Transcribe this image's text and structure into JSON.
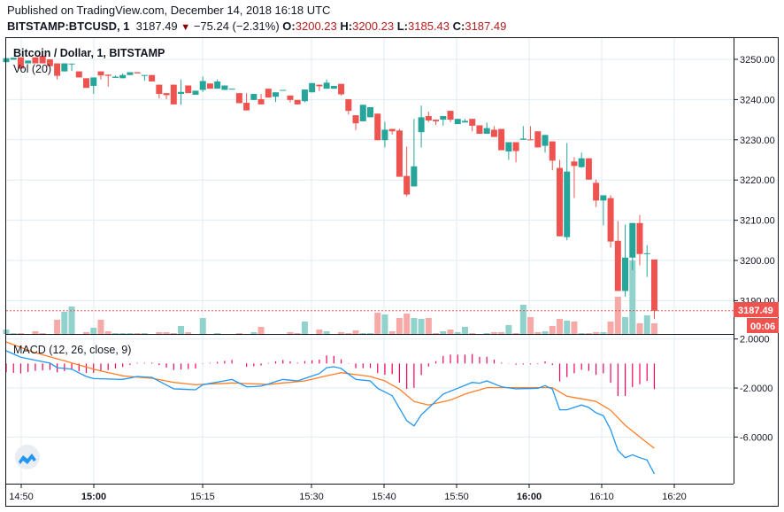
{
  "header": {
    "published": "Published on TradingView.com, December 14, 2018 16:18 UTC",
    "symbol": "BITSTAMP:BTCUSD, 1",
    "last": "3187.49",
    "change": "−75.24 (−2.31%)",
    "o_label": "O:",
    "o": "3200.23",
    "h_label": "H:",
    "h": "3200.23",
    "l_label": "L:",
    "l": "3185.43",
    "c_label": "C:",
    "c": "3187.49",
    "down_icon": "triangle-down-icon"
  },
  "legend": {
    "title": "Bitcoin / Dollar, 1, BITSTAMP",
    "volume": "Vol (20)",
    "macd": "MACD (12, 26, close, 9)"
  },
  "price_tag": {
    "value": "3187.49",
    "countdown": "00:06"
  },
  "colors": {
    "up": "#26a69a",
    "down": "#ef5350",
    "up_volume": "#92d2cc",
    "down_volume": "#f7a9a7",
    "macd": "#2196f3",
    "signal": "#ff7f27",
    "histogram": "#f50057",
    "grid": "#e1ecf2"
  },
  "chart_data": [
    {
      "type": "candlestick",
      "title": "Bitcoin / Dollar, 1, BITSTAMP",
      "ylim": [
        3186,
        3255
      ],
      "y_ticks": [
        "3250.00",
        "3240.00",
        "3230.00",
        "3220.00",
        "3210.00",
        "3200.00",
        "3190.00"
      ],
      "x_ticks": [
        {
          "label": "14:50",
          "bold": false
        },
        {
          "label": "15:00",
          "bold": true
        },
        {
          "label": "15:15",
          "bold": false
        },
        {
          "label": "15:30",
          "bold": false
        },
        {
          "label": "15:40",
          "bold": false
        },
        {
          "label": "15:50",
          "bold": false
        },
        {
          "label": "16:00",
          "bold": true
        },
        {
          "label": "16:10",
          "bold": false
        },
        {
          "label": "16:20",
          "bold": false
        }
      ],
      "last_price": 3187.49,
      "ohlc": [
        [
          3249.3,
          3250.3,
          3249.3,
          3250.3
        ],
        [
          3249.9,
          3250.4,
          3249.9,
          3250.4
        ],
        [
          3250.5,
          3250.5,
          3247.7,
          3247.7
        ],
        [
          3249.0,
          3249.7,
          3249.0,
          3249.7
        ],
        [
          3250.5,
          3250.5,
          3249.0,
          3249.0
        ],
        [
          3250.9,
          3250.9,
          3249.0,
          3249.0
        ],
        [
          3250.0,
          3250.0,
          3248.3,
          3248.3
        ],
        [
          3249.0,
          3249.0,
          3245.0,
          3245.9
        ],
        [
          3247.0,
          3249.0,
          3247.0,
          3249.0
        ],
        [
          3248.9,
          3248.9,
          3247.1,
          3248.95
        ],
        [
          3247.0,
          3247.0,
          3245.5,
          3245.5
        ],
        [
          3245.3,
          3245.3,
          3242.9,
          3242.9
        ],
        [
          3243.4,
          3245.5,
          3241.4,
          3245.5
        ],
        [
          3247.0,
          3247.0,
          3245.0,
          3246.0
        ],
        [
          3246.2,
          3246.2,
          3243.2,
          3245.9
        ],
        [
          3245.4,
          3246.0,
          3245.4,
          3245.7
        ],
        [
          3245.3,
          3246.5,
          3245.3,
          3246.1
        ],
        [
          3246.1,
          3246.8,
          3246.1,
          3246.8
        ],
        [
          3246.8,
          3246.8,
          3246.5,
          3246.5
        ],
        [
          3246.0,
          3246.1,
          3244.7,
          3246.1
        ],
        [
          3246.1,
          3246.1,
          3244.5,
          3244.5
        ],
        [
          3243.7,
          3243.7,
          3240.3,
          3241.4
        ],
        [
          3241.6,
          3241.6,
          3240.1,
          3241.1
        ],
        [
          3243.7,
          3243.7,
          3238.8,
          3238.8
        ],
        [
          3241.4,
          3245.0,
          3238.7,
          3241.9
        ],
        [
          3243.5,
          3243.5,
          3241.6,
          3241.6
        ],
        [
          3241.2,
          3242.2,
          3241.2,
          3242.2
        ],
        [
          3242.4,
          3245.7,
          3241.9,
          3244.6
        ],
        [
          3244.0,
          3244.0,
          3242.7,
          3242.7
        ],
        [
          3242.7,
          3245.0,
          3242.7,
          3244.5
        ],
        [
          3242.4,
          3243.5,
          3242.4,
          3243.5
        ],
        [
          3242.5,
          3242.7,
          3242.5,
          3242.7
        ],
        [
          3241.6,
          3241.6,
          3239.1,
          3239.1
        ],
        [
          3239.2,
          3241.6,
          3237.3,
          3237.3
        ],
        [
          3239.9,
          3241.4,
          3239.9,
          3241.4
        ],
        [
          3240.1,
          3241.4,
          3238.8,
          3238.8
        ],
        [
          3242.7,
          3242.7,
          3240.5,
          3240.5
        ],
        [
          3240.7,
          3241.8,
          3239.4,
          3241.8
        ],
        [
          3242.3,
          3242.4,
          3242.3,
          3242.4
        ],
        [
          3241.0,
          3241.0,
          3239.3,
          3239.9
        ],
        [
          3239.9,
          3239.9,
          3238.8,
          3238.8
        ],
        [
          3239.6,
          3242.5,
          3239.3,
          3242.5
        ],
        [
          3241.8,
          3244.1,
          3241.8,
          3244.1
        ],
        [
          3243.7,
          3243.7,
          3242.1,
          3243.3
        ],
        [
          3242.7,
          3245.0,
          3242.7,
          3244.2
        ],
        [
          3242.7,
          3243.4,
          3242.7,
          3243.4
        ],
        [
          3243.9,
          3243.9,
          3241.0,
          3241.3
        ],
        [
          3240.1,
          3240.1,
          3236.3,
          3237.2
        ],
        [
          3236.1,
          3236.1,
          3232.4,
          3234.1
        ],
        [
          3234.6,
          3238.7,
          3234.6,
          3238.7
        ],
        [
          3235.6,
          3238.1,
          3235.6,
          3238.1
        ],
        [
          3236.5,
          3236.5,
          3229.9,
          3229.9
        ],
        [
          3229.9,
          3234.5,
          3228.1,
          3232.5
        ],
        [
          3232.7,
          3232.7,
          3231.3,
          3232.1
        ],
        [
          3232.3,
          3232.7,
          3220.8,
          3220.8
        ],
        [
          3221.0,
          3228.3,
          3215.9,
          3216.4
        ],
        [
          3218.4,
          3235.2,
          3218.4,
          3223.4
        ],
        [
          3231.9,
          3238.5,
          3228.1,
          3235.6
        ],
        [
          3235.9,
          3237.0,
          3234.4,
          3234.8
        ],
        [
          3235.0,
          3235.0,
          3233.7,
          3234.6
        ],
        [
          3235.0,
          3235.9,
          3233.5,
          3235.9
        ],
        [
          3237.2,
          3237.2,
          3234.4,
          3235.0
        ],
        [
          3233.9,
          3235.2,
          3233.9,
          3235.2
        ],
        [
          3234.3,
          3235.2,
          3234.3,
          3234.7
        ],
        [
          3235.2,
          3235.2,
          3232.1,
          3233.5
        ],
        [
          3233.6,
          3233.6,
          3231.5,
          3231.5
        ],
        [
          3231.5,
          3234.3,
          3231.5,
          3232.9
        ],
        [
          3232.5,
          3233.4,
          3230.7,
          3230.7
        ],
        [
          3232.7,
          3232.7,
          3227.4,
          3227.4
        ],
        [
          3227.1,
          3229.4,
          3225.0,
          3229.4
        ],
        [
          3229.4,
          3229.4,
          3224.4,
          3227.2
        ],
        [
          3230.0,
          3233.4,
          3230.0,
          3230.3
        ],
        [
          3230.1,
          3233.4,
          3230.0,
          3230.0
        ],
        [
          3232.1,
          3232.1,
          3228.1,
          3228.1
        ],
        [
          3228.5,
          3231.2,
          3226.8,
          3231.2
        ],
        [
          3229.6,
          3229.6,
          3222.4,
          3224.8
        ],
        [
          3223.0,
          3225.0,
          3206.0,
          3206.0
        ],
        [
          3205.8,
          3229.2,
          3205.0,
          3222.1
        ],
        [
          3224.6,
          3225.7,
          3215.5,
          3223.5
        ],
        [
          3223.2,
          3226.8,
          3223.0,
          3225.4
        ],
        [
          3225.4,
          3225.4,
          3220.1,
          3220.1
        ],
        [
          3219.3,
          3220.1,
          3213.3,
          3214.9
        ],
        [
          3214.9,
          3216.2,
          3208.7,
          3216.2
        ],
        [
          3215.5,
          3216.2,
          3203.2,
          3204.7
        ],
        [
          3204.9,
          3209.8,
          3192.4,
          3192.4
        ],
        [
          3192.4,
          3208.9,
          3191.0,
          3200.7
        ],
        [
          3200.7,
          3209.3,
          3197.6,
          3209.3
        ],
        [
          3209.3,
          3211.3,
          3198.8,
          3201.6
        ],
        [
          3201.8,
          3203.8,
          3195.9,
          3201.8
        ],
        [
          3200.23,
          3200.23,
          3185.43,
          3187.49
        ]
      ],
      "volume": [
        5,
        1,
        1,
        0,
        3,
        1,
        0,
        16,
        25,
        31,
        0,
        2,
        7,
        16,
        3,
        1,
        1,
        1,
        1,
        1,
        0,
        2,
        2,
        1,
        9,
        2,
        0,
        18,
        0,
        1,
        0,
        0,
        1,
        0,
        2,
        8,
        0,
        0,
        0,
        2,
        1,
        14,
        0,
        5,
        3,
        0,
        2,
        1,
        4,
        1,
        1,
        24,
        22,
        3,
        18,
        23,
        18,
        17,
        18,
        1,
        3,
        5,
        2,
        8,
        1,
        0,
        1,
        2,
        2,
        10,
        1,
        33,
        19,
        2,
        3,
        9,
        17,
        15,
        14,
        1,
        1,
        2,
        2,
        14,
        42,
        19,
        83,
        12,
        21,
        12
      ]
    },
    {
      "type": "line",
      "title": "MACD (12, 26, close, 9)",
      "ylim": [
        -9.5,
        2.0
      ],
      "y_ticks": [
        "2.0000",
        "-2.0000",
        "-6.0000"
      ],
      "series": [
        {
          "name": "MACD",
          "values": [
            1.04,
            0.78,
            0.51,
            0.39,
            0.27,
            0.15,
            0.03,
            -0.34,
            -0.4,
            -0.46,
            -0.76,
            -1.06,
            -1.23,
            -1.25,
            -1.27,
            -1.28,
            -1.3,
            -1.18,
            -1.06,
            -1.1,
            -1.13,
            -1.44,
            -1.76,
            -2.07,
            -2.09,
            -2.12,
            -2.14,
            -1.73,
            -1.62,
            -1.52,
            -1.41,
            -1.3,
            -1.6,
            -1.9,
            -1.88,
            -1.85,
            -1.67,
            -1.48,
            -1.3,
            -1.36,
            -1.42,
            -1.22,
            -1.02,
            -0.82,
            -0.34,
            -0.26,
            -0.41,
            -0.86,
            -1.3,
            -1.36,
            -1.42,
            -2.02,
            -2.33,
            -2.63,
            -3.65,
            -4.67,
            -5.09,
            -4.19,
            -3.63,
            -3.06,
            -2.5,
            -2.26,
            -2.02,
            -1.78,
            -1.54,
            -1.61,
            -1.42,
            -1.66,
            -1.9,
            -1.99,
            -2.07,
            -2.05,
            -2.04,
            -2.02,
            -1.8,
            -2.09,
            -3.78,
            -3.78,
            -3.58,
            -3.39,
            -3.59,
            -4.02,
            -4.26,
            -5.4,
            -7.08,
            -7.69,
            -7.45,
            -7.69,
            -7.88,
            -9.01
          ]
        },
        {
          "name": "Signal",
          "values": [
            1.76,
            1.54,
            1.32,
            1.09,
            0.87,
            0.71,
            0.55,
            0.38,
            0.22,
            0.05,
            -0.12,
            -0.29,
            -0.46,
            -0.6,
            -0.74,
            -0.87,
            -1.01,
            -1.06,
            -1.11,
            -1.15,
            -1.2,
            -1.31,
            -1.43,
            -1.54,
            -1.6,
            -1.67,
            -1.73,
            -1.7,
            -1.67,
            -1.65,
            -1.62,
            -1.59,
            -1.61,
            -1.64,
            -1.66,
            -1.69,
            -1.71,
            -1.65,
            -1.59,
            -1.54,
            -1.48,
            -1.42,
            -1.28,
            -1.14,
            -1.0,
            -0.88,
            -0.75,
            -0.83,
            -0.91,
            -0.98,
            -1.06,
            -1.24,
            -1.42,
            -1.76,
            -2.09,
            -2.6,
            -3.1,
            -3.25,
            -3.39,
            -3.25,
            -3.12,
            -2.98,
            -2.74,
            -2.5,
            -2.32,
            -2.15,
            -1.97,
            -1.97,
            -1.97,
            -1.97,
            -1.97,
            -1.97,
            -1.97,
            -1.97,
            -1.97,
            -1.97,
            -2.32,
            -2.67,
            -2.78,
            -2.88,
            -2.99,
            -3.1,
            -3.46,
            -3.82,
            -4.43,
            -5.04,
            -5.52,
            -6.0,
            -6.46,
            -6.92
          ]
        }
      ]
    }
  ]
}
